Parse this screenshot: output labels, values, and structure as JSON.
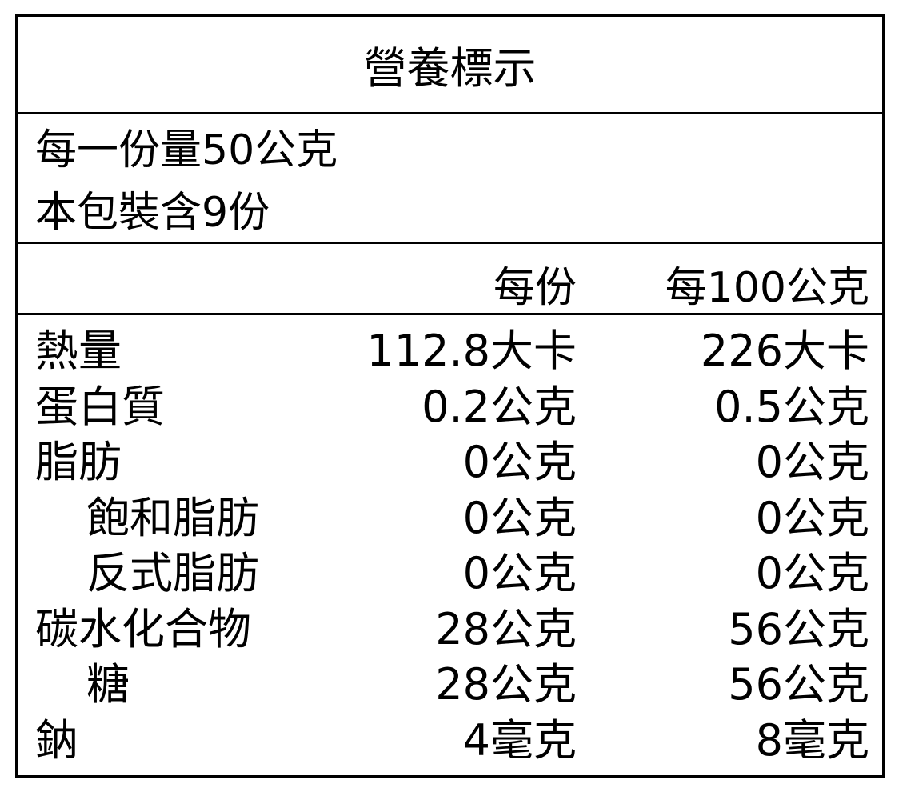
{
  "title": "營養標示",
  "serving": {
    "size": "每一份量50公克",
    "count": "本包裝含9份"
  },
  "columns": {
    "per_serving": "每份",
    "per_100g": "每100公克"
  },
  "rows": [
    {
      "name": "熱量",
      "indent": false,
      "per_serving": "112.8大卡",
      "per_100g": "226大卡"
    },
    {
      "name": "蛋白質",
      "indent": false,
      "per_serving": "0.2公克",
      "per_100g": "0.5公克"
    },
    {
      "name": "脂肪",
      "indent": false,
      "per_serving": "0公克",
      "per_100g": "0公克"
    },
    {
      "name": "飽和脂肪",
      "indent": true,
      "per_serving": "0公克",
      "per_100g": "0公克"
    },
    {
      "name": "反式脂肪",
      "indent": true,
      "per_serving": "0公克",
      "per_100g": "0公克"
    },
    {
      "name": "碳水化合物",
      "indent": false,
      "per_serving": "28公克",
      "per_100g": "56公克"
    },
    {
      "name": "糖",
      "indent": true,
      "per_serving": "28公克",
      "per_100g": "56公克"
    },
    {
      "name": "鈉",
      "indent": false,
      "per_serving": "4毫克",
      "per_100g": "8毫克"
    }
  ]
}
